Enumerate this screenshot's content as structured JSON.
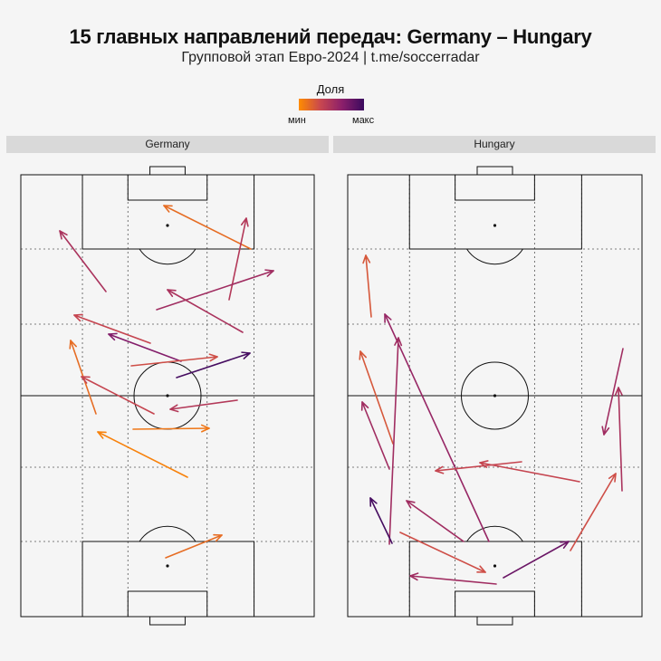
{
  "header": {
    "title": "15 главных направлений передач: Germany – Hungary",
    "subtitle": "Групповой этап Евро-2024 | t.me/soccerradar"
  },
  "legend": {
    "title": "Доля",
    "min_label": "мин",
    "max_label": "макс",
    "colors": [
      "#ff8c00",
      "#c8474f",
      "#8b1f6b",
      "#3a0a5e"
    ]
  },
  "chart_data": [
    {
      "type": "flow-arrows",
      "panel": "Germany",
      "passes": [
        {
          "from": [
            277,
            275
          ],
          "to": [
            181,
            227
          ],
          "share": 0.15
        },
        {
          "from": [
            253,
            331
          ],
          "to": [
            272,
            241
          ],
          "share": 0.45
        },
        {
          "from": [
            117,
            322
          ],
          "to": [
            66,
            255
          ],
          "share": 0.5
        },
        {
          "from": [
            173,
            342
          ],
          "to": [
            302,
            299
          ],
          "share": 0.55
        },
        {
          "from": [
            268,
            367
          ],
          "to": [
            185,
            320
          ],
          "share": 0.5
        },
        {
          "from": [
            166,
            379
          ],
          "to": [
            82,
            348
          ],
          "share": 0.35
        },
        {
          "from": [
            200,
            399
          ],
          "to": [
            120,
            369
          ],
          "share": 0.7
        },
        {
          "from": [
            106,
            457
          ],
          "to": [
            78,
            376
          ],
          "share": 0.15
        },
        {
          "from": [
            145,
            404
          ],
          "to": [
            240,
            394
          ],
          "share": 0.3
        },
        {
          "from": [
            195,
            417
          ],
          "to": [
            276,
            390
          ],
          "share": 0.95
        },
        {
          "from": [
            170,
            457
          ],
          "to": [
            90,
            416
          ],
          "share": 0.35
        },
        {
          "from": [
            262,
            442
          ],
          "to": [
            188,
            452
          ],
          "share": 0.45
        },
        {
          "from": [
            147,
            474
          ],
          "to": [
            231,
            473
          ],
          "share": 0.1
        },
        {
          "from": [
            207,
            527
          ],
          "to": [
            108,
            477
          ],
          "share": 0.05
        },
        {
          "from": [
            183,
            616
          ],
          "to": [
            245,
            591
          ],
          "share": 0.15
        }
      ]
    },
    {
      "type": "flow-arrows",
      "panel": "Hungary",
      "passes": [
        {
          "from": [
            410,
            350
          ],
          "to": [
            404,
            282
          ],
          "share": 0.25
        },
        {
          "from": [
            540,
            598
          ],
          "to": [
            425,
            347
          ],
          "share": 0.6
        },
        {
          "from": [
            434,
            490
          ],
          "to": [
            398,
            388
          ],
          "share": 0.25
        },
        {
          "from": [
            430,
            601
          ],
          "to": [
            440,
            373
          ],
          "share": 0.55
        },
        {
          "from": [
            430,
            518
          ],
          "to": [
            400,
            444
          ],
          "share": 0.55
        },
        {
          "from": [
            688,
            385
          ],
          "to": [
            667,
            480
          ],
          "share": 0.55
        },
        {
          "from": [
            687,
            542
          ],
          "to": [
            683,
            428
          ],
          "share": 0.5
        },
        {
          "from": [
            576,
            510
          ],
          "to": [
            481,
            520
          ],
          "share": 0.35
        },
        {
          "from": [
            640,
            532
          ],
          "to": [
            530,
            511
          ],
          "share": 0.35
        },
        {
          "from": [
            630,
            608
          ],
          "to": [
            680,
            523
          ],
          "share": 0.3
        },
        {
          "from": [
            433,
            600
          ],
          "to": [
            409,
            550
          ],
          "share": 0.95
        },
        {
          "from": [
            512,
            598
          ],
          "to": [
            449,
            553
          ],
          "share": 0.55
        },
        {
          "from": [
            442,
            588
          ],
          "to": [
            536,
            632
          ],
          "share": 0.3
        },
        {
          "from": [
            556,
            638
          ],
          "to": [
            628,
            598
          ],
          "share": 0.8
        },
        {
          "from": [
            548,
            645
          ],
          "to": [
            453,
            636
          ],
          "share": 0.55
        }
      ]
    }
  ]
}
